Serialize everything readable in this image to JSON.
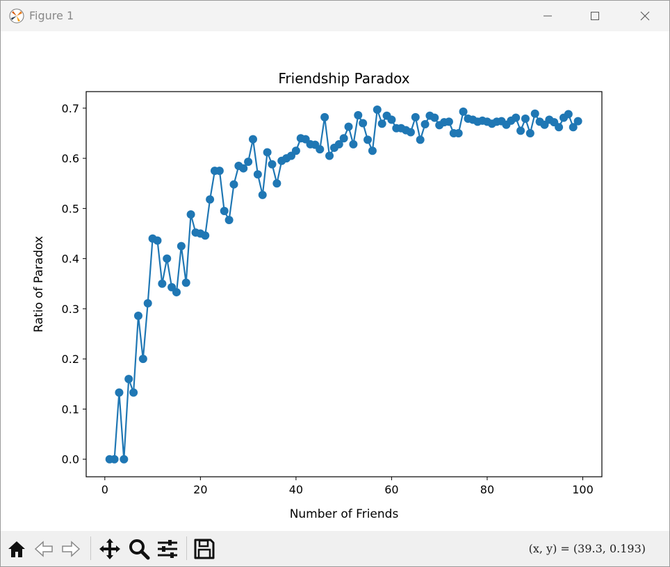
{
  "window": {
    "title": "Figure 1"
  },
  "toolbar": {
    "buttons": [
      "home-icon",
      "back-icon",
      "forward-icon",
      "pan-icon",
      "zoom-icon",
      "configure-icon",
      "save-icon"
    ],
    "coords": "(x, y) = (39.3, 0.193)"
  },
  "colors": {
    "series": "#1f77b4"
  },
  "chart_data": {
    "type": "line",
    "title": "Friendship Paradox",
    "xlabel": "Number of Friends",
    "ylabel": "Ratio of Paradox",
    "xlim": [
      -3.9,
      104.0
    ],
    "ylim": [
      -0.035,
      0.733
    ],
    "xticks": [
      0,
      20,
      40,
      60,
      80,
      100
    ],
    "yticks": [
      0.0,
      0.1,
      0.2,
      0.3,
      0.4,
      0.5,
      0.6,
      0.7
    ],
    "ytick_labels": [
      "0.0",
      "0.1",
      "0.2",
      "0.3",
      "0.4",
      "0.5",
      "0.6",
      "0.7"
    ],
    "grid": false,
    "marker": "circle",
    "x": [
      1,
      2,
      3,
      4,
      5,
      6,
      7,
      8,
      9,
      10,
      11,
      12,
      13,
      14,
      15,
      16,
      17,
      18,
      19,
      20,
      21,
      22,
      23,
      24,
      25,
      26,
      27,
      28,
      29,
      30,
      31,
      32,
      33,
      34,
      35,
      36,
      37,
      38,
      39,
      40,
      41,
      42,
      43,
      44,
      45,
      46,
      47,
      48,
      49,
      50,
      51,
      52,
      53,
      54,
      55,
      56,
      57,
      58,
      59,
      60,
      61,
      62,
      63,
      64,
      65,
      66,
      67,
      68,
      69,
      70,
      71,
      72,
      73,
      74,
      75,
      76,
      77,
      78,
      79,
      80,
      81,
      82,
      83,
      84,
      85,
      86,
      87,
      88,
      89,
      90,
      91,
      92,
      93,
      94,
      95,
      96,
      97,
      98,
      99
    ],
    "y": [
      0.0,
      0.0,
      0.133,
      0.0,
      0.16,
      0.133,
      0.286,
      0.2,
      0.311,
      0.44,
      0.436,
      0.35,
      0.4,
      0.343,
      0.333,
      0.425,
      0.352,
      0.488,
      0.452,
      0.45,
      0.446,
      0.518,
      0.575,
      0.575,
      0.495,
      0.477,
      0.548,
      0.585,
      0.58,
      0.593,
      0.638,
      0.568,
      0.527,
      0.612,
      0.588,
      0.55,
      0.595,
      0.6,
      0.605,
      0.615,
      0.64,
      0.638,
      0.628,
      0.627,
      0.618,
      0.682,
      0.605,
      0.621,
      0.628,
      0.64,
      0.663,
      0.628,
      0.686,
      0.67,
      0.637,
      0.615,
      0.697,
      0.669,
      0.685,
      0.677,
      0.66,
      0.66,
      0.656,
      0.652,
      0.682,
      0.637,
      0.668,
      0.685,
      0.681,
      0.666,
      0.672,
      0.673,
      0.65,
      0.65,
      0.693,
      0.679,
      0.677,
      0.673,
      0.675,
      0.673,
      0.669,
      0.673,
      0.674,
      0.667,
      0.675,
      0.681,
      0.655,
      0.679,
      0.65,
      0.689,
      0.673,
      0.667,
      0.677,
      0.672,
      0.662,
      0.681,
      0.688,
      0.662,
      0.674
    ]
  }
}
